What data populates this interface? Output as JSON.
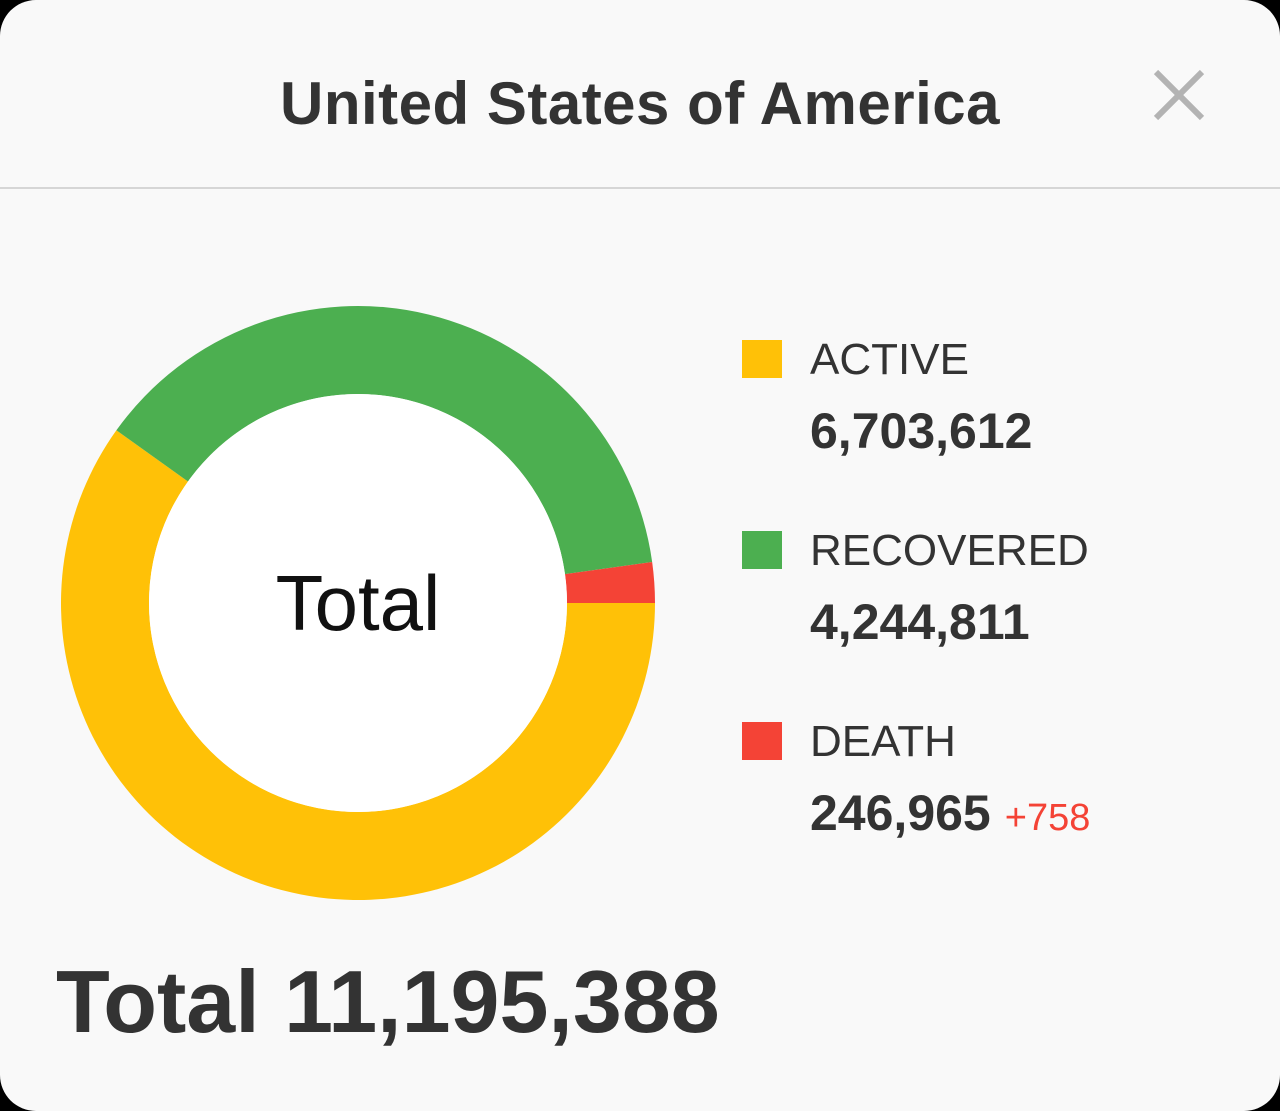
{
  "dialog": {
    "title": "United States of America",
    "close_icon": "close-icon"
  },
  "chart_data": {
    "type": "pie",
    "center_label": "Total",
    "categories": [
      "ACTIVE",
      "RECOVERED",
      "DEATH"
    ],
    "values": [
      6703612,
      4244811,
      246965
    ],
    "colors": [
      "#FFC107",
      "#4CAF50",
      "#F44336"
    ]
  },
  "legend": {
    "items": [
      {
        "label": "ACTIVE",
        "value": "6,703,612",
        "color": "#FFC107"
      },
      {
        "label": "RECOVERED",
        "value": "4,244,811",
        "color": "#4CAF50"
      },
      {
        "label": "DEATH",
        "value": "246,965",
        "delta": "+758",
        "color": "#F44336"
      }
    ]
  },
  "total": {
    "label": "Total",
    "value": "11,195,388"
  }
}
